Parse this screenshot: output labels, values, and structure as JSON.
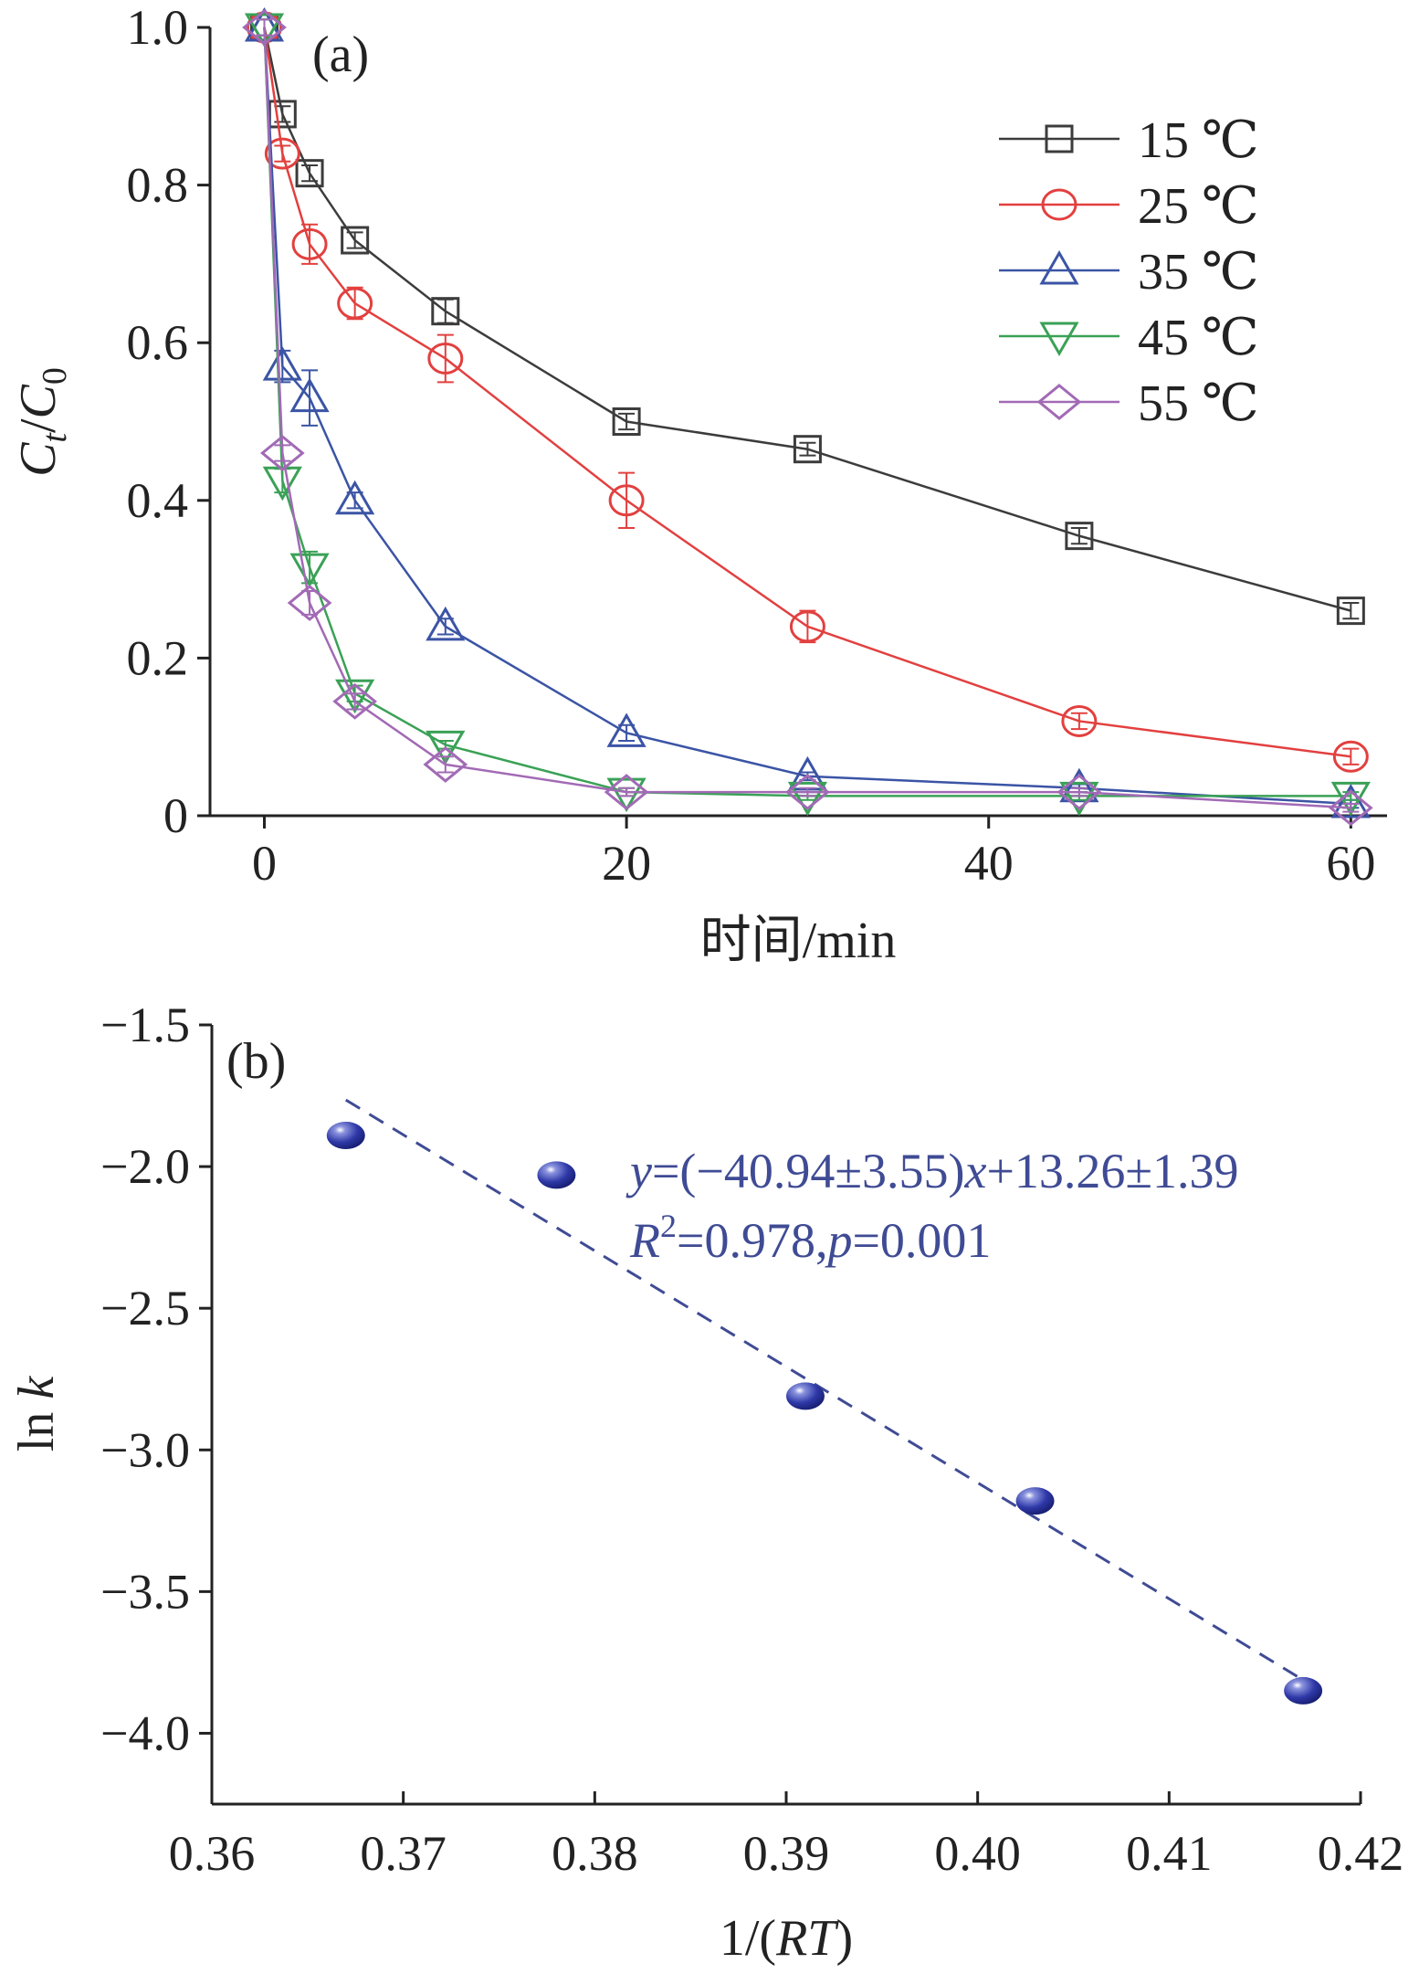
{
  "chart_data": [
    {
      "id": "a",
      "type": "line",
      "panel_label": "(a)",
      "xlabel": "时间/min",
      "ylabel_parts": {
        "c": "C",
        "t": "t",
        "slash": "/",
        "zero": "0"
      },
      "xlim": [
        -3,
        62
      ],
      "ylim": [
        0,
        1.0
      ],
      "xticks": [
        0,
        20,
        40,
        60
      ],
      "xtick_labels": [
        "0",
        "20",
        "40",
        "60"
      ],
      "yticks": [
        0,
        0.2,
        0.4,
        0.6,
        0.8,
        1.0
      ],
      "ytick_labels": [
        "0",
        "0.2",
        "0.4",
        "0.6",
        "0.8",
        "1.0"
      ],
      "legend_position": "top-right",
      "series": [
        {
          "name": "15 ℃",
          "color": "#3c3c3c",
          "marker": "square",
          "x": [
            0,
            1,
            2.5,
            5,
            10,
            20,
            30,
            45,
            60
          ],
          "values": [
            1.0,
            0.89,
            0.815,
            0.73,
            0.64,
            0.5,
            0.465,
            0.355,
            0.26
          ],
          "errors": [
            0.01,
            0.01,
            0.01,
            0.01,
            0.015,
            0.01,
            0.008,
            0.01,
            0.01
          ]
        },
        {
          "name": "25 ℃",
          "color": "#e2403f",
          "marker": "circle",
          "x": [
            0,
            1,
            2.5,
            5,
            10,
            20,
            30,
            45,
            60
          ],
          "values": [
            1.0,
            0.84,
            0.725,
            0.65,
            0.58,
            0.4,
            0.24,
            0.12,
            0.075
          ],
          "errors": [
            0.01,
            0.01,
            0.025,
            0.02,
            0.03,
            0.035,
            0.02,
            0.01,
            0.01
          ]
        },
        {
          "name": "35 ℃",
          "color": "#3b54a5",
          "marker": "triangle-up",
          "x": [
            0,
            1,
            2.5,
            5,
            10,
            20,
            30,
            45,
            60
          ],
          "values": [
            1.0,
            0.57,
            0.53,
            0.4,
            0.24,
            0.105,
            0.05,
            0.035,
            0.015
          ],
          "errors": [
            0.01,
            0.02,
            0.035,
            0.01,
            0.01,
            0.01,
            0.005,
            0.005,
            0.005
          ]
        },
        {
          "name": "45 ℃",
          "color": "#3aa156",
          "marker": "triangle-down",
          "x": [
            0,
            1,
            2.5,
            5,
            10,
            20,
            30,
            45,
            60
          ],
          "values": [
            1.0,
            0.425,
            0.315,
            0.155,
            0.09,
            0.03,
            0.025,
            0.025,
            0.025
          ],
          "errors": [
            0.01,
            0.015,
            0.02,
            0.01,
            0.005,
            0.005,
            0.005,
            0.005,
            0.005
          ]
        },
        {
          "name": "55 ℃",
          "color": "#a26ab5",
          "marker": "diamond",
          "x": [
            0,
            1,
            2.5,
            5,
            10,
            20,
            30,
            45,
            60
          ],
          "values": [
            1.0,
            0.46,
            0.27,
            0.145,
            0.065,
            0.03,
            0.03,
            0.03,
            0.01
          ],
          "errors": [
            0.01,
            0.01,
            0.015,
            0.01,
            0.01,
            0.005,
            0.005,
            0.005,
            0.005
          ]
        }
      ]
    },
    {
      "id": "b",
      "type": "scatter",
      "panel_label": "(b)",
      "xlabel_parts": {
        "pre": "1/(",
        "rt": "RT",
        "post": ")"
      },
      "ylabel_parts": {
        "ln": "ln ",
        "k": "k"
      },
      "xlim": [
        0.36,
        0.42
      ],
      "ylim": [
        -4.25,
        -1.5
      ],
      "xticks": [
        0.36,
        0.37,
        0.38,
        0.39,
        0.4,
        0.41,
        0.42
      ],
      "xtick_labels": [
        "0.36",
        "0.37",
        "0.38",
        "0.39",
        "0.40",
        "0.41",
        "0.42"
      ],
      "yticks": [
        -1.5,
        -2.0,
        -2.5,
        -3.0,
        -3.5,
        -4.0
      ],
      "ytick_labels": [
        "−1.5",
        "−2.0",
        "−2.5",
        "−3.0",
        "−3.5",
        "−4.0"
      ],
      "points": {
        "x": [
          0.367,
          0.378,
          0.391,
          0.403,
          0.417
        ],
        "y": [
          -1.89,
          -2.03,
          -2.81,
          -3.18,
          -3.85
        ]
      },
      "fit": {
        "slope": -40.94,
        "intercept": 13.26,
        "x_range": [
          0.367,
          0.417
        ]
      },
      "color": "#3f4b94",
      "equation": {
        "y": "y",
        "eq1": "=(−40.94±3.55)",
        "x": "x",
        "eq2": "+13.26±1.39",
        "r": "R",
        "r_sup": "2",
        "eq3": "=0.978,",
        "p": "p",
        "eq4": "=0.001"
      }
    }
  ]
}
